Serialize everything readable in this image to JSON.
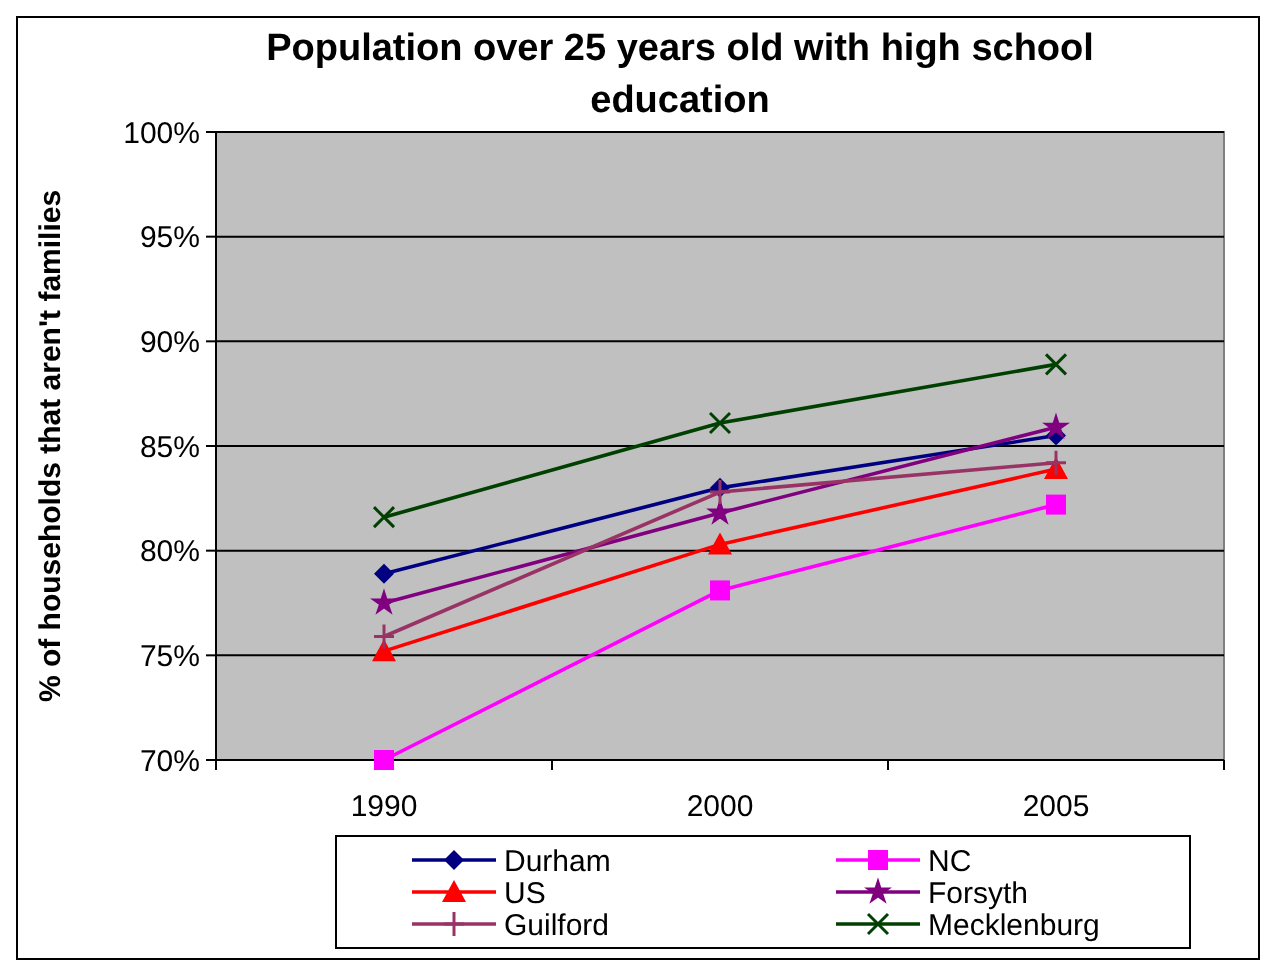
{
  "chart_data": {
    "type": "line",
    "title": "Population over 25 years old with high school education",
    "ylabel": "% of households that aren't families",
    "categories": [
      "1990",
      "2000",
      "2005"
    ],
    "series": [
      {
        "name": "Durham",
        "color": "#000080",
        "marker": "diamond",
        "values": [
          78.9,
          83.0,
          85.5
        ]
      },
      {
        "name": "NC",
        "color": "#ff00ff",
        "marker": "square",
        "values": [
          70.0,
          78.1,
          82.2
        ]
      },
      {
        "name": "US",
        "color": "#ff0000",
        "marker": "triangle",
        "values": [
          75.2,
          80.3,
          83.9
        ]
      },
      {
        "name": "Forsyth",
        "color": "#800080",
        "marker": "star",
        "values": [
          77.5,
          81.8,
          85.9
        ]
      },
      {
        "name": "Guilford",
        "color": "#993366",
        "marker": "plus",
        "values": [
          75.9,
          82.8,
          84.2
        ]
      },
      {
        "name": "Mecklenburg",
        "color": "#004000",
        "marker": "cross",
        "values": [
          81.6,
          86.1,
          88.9
        ]
      }
    ],
    "ylim": [
      70,
      100
    ],
    "yticks": [
      {
        "value": 70,
        "label": "70%"
      },
      {
        "value": 75,
        "label": "75%"
      },
      {
        "value": 80,
        "label": "80%"
      },
      {
        "value": 85,
        "label": "85%"
      },
      {
        "value": 90,
        "label": "90%"
      },
      {
        "value": 95,
        "label": "95%"
      },
      {
        "value": 100,
        "label": "100%"
      }
    ],
    "grid": "y",
    "legend": "bottom"
  }
}
